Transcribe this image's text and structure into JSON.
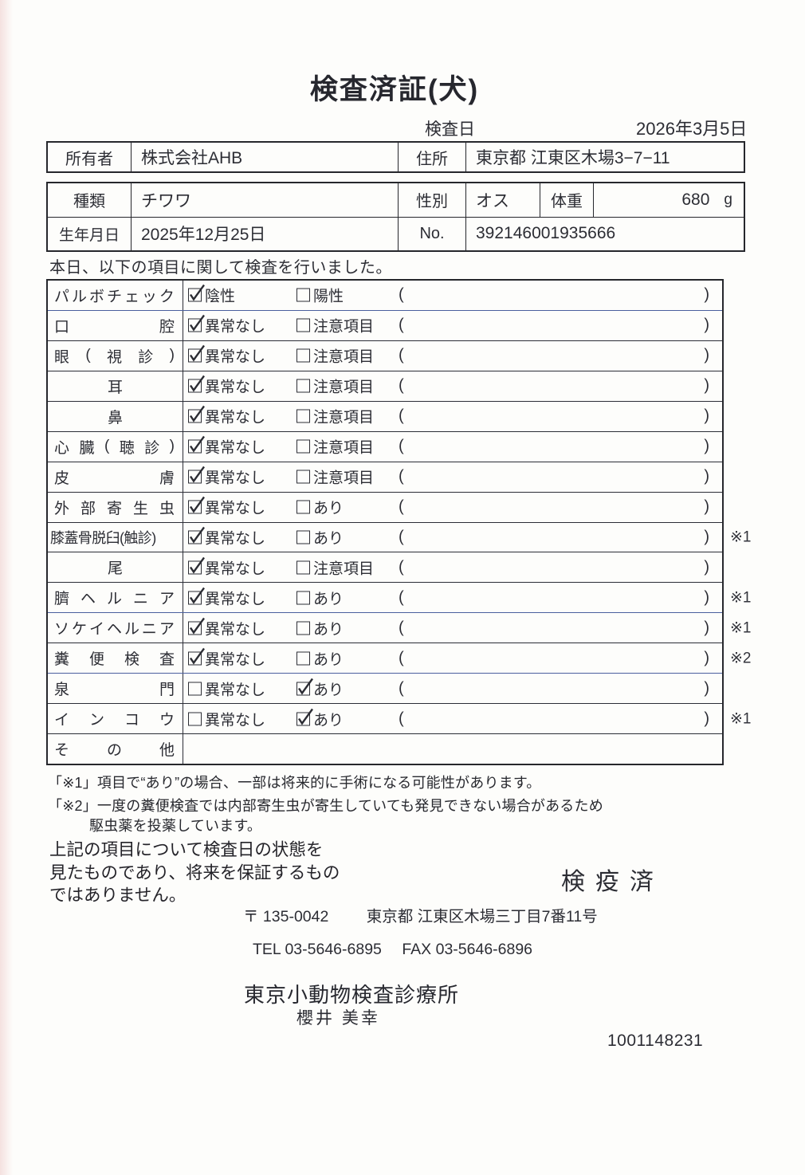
{
  "header": {
    "title": "検査済証(犬)",
    "inspection_date_label": "検査日",
    "inspection_date": "2026年3月5日"
  },
  "owner_box": {
    "owner_label": "所有者",
    "owner": "株式会社AHB",
    "address_label": "住所",
    "address": "東京都 江東区木場3−7−11"
  },
  "pet_box": {
    "breed_label": "種類",
    "breed": "チワワ",
    "sex_label": "性別",
    "sex": "オス",
    "weight_label": "体重",
    "weight_value": "680",
    "weight_unit": "g",
    "birth_label": "生年月日",
    "birth": "2025年12月25日",
    "no_label": "No.",
    "no_value": "392146001935666"
  },
  "intro": "本日、以下の項目に関して検査を行いました。",
  "checklist": {
    "paren_open": "(",
    "paren_close": ")",
    "items": [
      {
        "label": "パルボチェック",
        "style": "justify",
        "opt1": "陰性",
        "opt1_checked": true,
        "opt2": "陽性",
        "opt2_checked": false,
        "note": ""
      },
      {
        "label": "口腔",
        "style": "justify",
        "opt1": "異常なし",
        "opt1_checked": true,
        "opt2": "注意項目",
        "opt2_checked": false,
        "note": ""
      },
      {
        "label": "眼(視診)",
        "style": "justify",
        "opt1": "異常なし",
        "opt1_checked": true,
        "opt2": "注意項目",
        "opt2_checked": false,
        "note": ""
      },
      {
        "label": "耳",
        "style": "center",
        "opt1": "異常なし",
        "opt1_checked": true,
        "opt2": "注意項目",
        "opt2_checked": false,
        "note": ""
      },
      {
        "label": "鼻",
        "style": "center",
        "opt1": "異常なし",
        "opt1_checked": true,
        "opt2": "注意項目",
        "opt2_checked": false,
        "note": ""
      },
      {
        "label": "心臓(聴診)",
        "style": "justify",
        "opt1": "異常なし",
        "opt1_checked": true,
        "opt2": "注意項目",
        "opt2_checked": false,
        "note": ""
      },
      {
        "label": "皮膚",
        "style": "justify",
        "opt1": "異常なし",
        "opt1_checked": true,
        "opt2": "注意項目",
        "opt2_checked": false,
        "note": ""
      },
      {
        "label": "外部寄生虫",
        "style": "justify",
        "opt1": "異常なし",
        "opt1_checked": true,
        "opt2": "あり",
        "opt2_checked": false,
        "note": ""
      },
      {
        "label": "膝蓋骨脱臼(触診)",
        "style": "plain",
        "opt1": "異常なし",
        "opt1_checked": true,
        "opt2": "あり",
        "opt2_checked": false,
        "note": "※1"
      },
      {
        "label": "尾",
        "style": "center",
        "opt1": "異常なし",
        "opt1_checked": true,
        "opt2": "注意項目",
        "opt2_checked": false,
        "note": ""
      },
      {
        "label": "臍ヘルニア",
        "style": "justify",
        "opt1": "異常なし",
        "opt1_checked": true,
        "opt2": "あり",
        "opt2_checked": false,
        "note": "※1"
      },
      {
        "label": "ソケイヘルニア",
        "style": "justify",
        "opt1": "異常なし",
        "opt1_checked": true,
        "opt2": "あり",
        "opt2_checked": false,
        "note": "※1"
      },
      {
        "label": "糞便検査",
        "style": "justify",
        "opt1": "異常なし",
        "opt1_checked": true,
        "opt2": "あり",
        "opt2_checked": false,
        "note": "※2"
      },
      {
        "label": "泉門",
        "style": "justify",
        "opt1": "異常なし",
        "opt1_checked": false,
        "opt2": "あり",
        "opt2_checked": true,
        "note": ""
      },
      {
        "label": "インコウ",
        "style": "justify",
        "opt1": "異常なし",
        "opt1_checked": false,
        "opt2": "あり",
        "opt2_checked": true,
        "note": "※1"
      },
      {
        "label": "その他",
        "style": "justify",
        "opt1": "",
        "opt1_checked": false,
        "opt2": "",
        "opt2_checked": false,
        "note": ""
      }
    ]
  },
  "notes": [
    "「※1」項目で“あり”の場合、一部は将来的に手術になる可能性があります。",
    "「※2」一度の糞便検査では内部寄生虫が寄生していても発見できない場合があるため",
    "駆虫薬を投薬しています。"
  ],
  "disclaimer": [
    "上記の項目について検査日の状態を",
    "見たものであり、将来を保証するもの",
    "ではありません。"
  ],
  "stamp": "検疫済",
  "footer": {
    "postal": "〒 135-0042",
    "address": "東京都 江東区木場三丁目7番11号",
    "tel": "TEL 03-5646-6895",
    "fax": "FAX 03-5646-6896",
    "clinic": "東京小動物検査診療所",
    "vet": "櫻井 美幸",
    "serial": "1001148231"
  }
}
